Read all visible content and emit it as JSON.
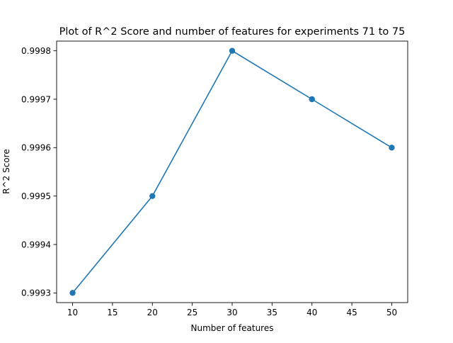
{
  "chart_data": {
    "type": "line",
    "title": "Plot of R^2 Score and number of features for experiments 71 to 75",
    "xlabel": "Number of features",
    "ylabel": "R^2 Score",
    "x": [
      10,
      20,
      30,
      40,
      50
    ],
    "y": [
      0.9993,
      0.9995,
      0.9998,
      0.9997,
      0.9996
    ],
    "xlim": [
      8,
      52
    ],
    "ylim": [
      0.99928,
      0.99982
    ],
    "xticks": [
      10,
      15,
      20,
      25,
      30,
      35,
      40,
      45,
      50
    ],
    "xtick_labels": [
      "10",
      "15",
      "20",
      "25",
      "30",
      "35",
      "40",
      "45",
      "50"
    ],
    "yticks": [
      0.9993,
      0.9994,
      0.9995,
      0.9996,
      0.9997,
      0.9998
    ],
    "ytick_labels": [
      "0.9993",
      "0.9994",
      "0.9995",
      "0.9996",
      "0.9997",
      "0.9998"
    ],
    "marker": "circle",
    "color": "#1f77b4",
    "grid": false,
    "legend": false
  }
}
